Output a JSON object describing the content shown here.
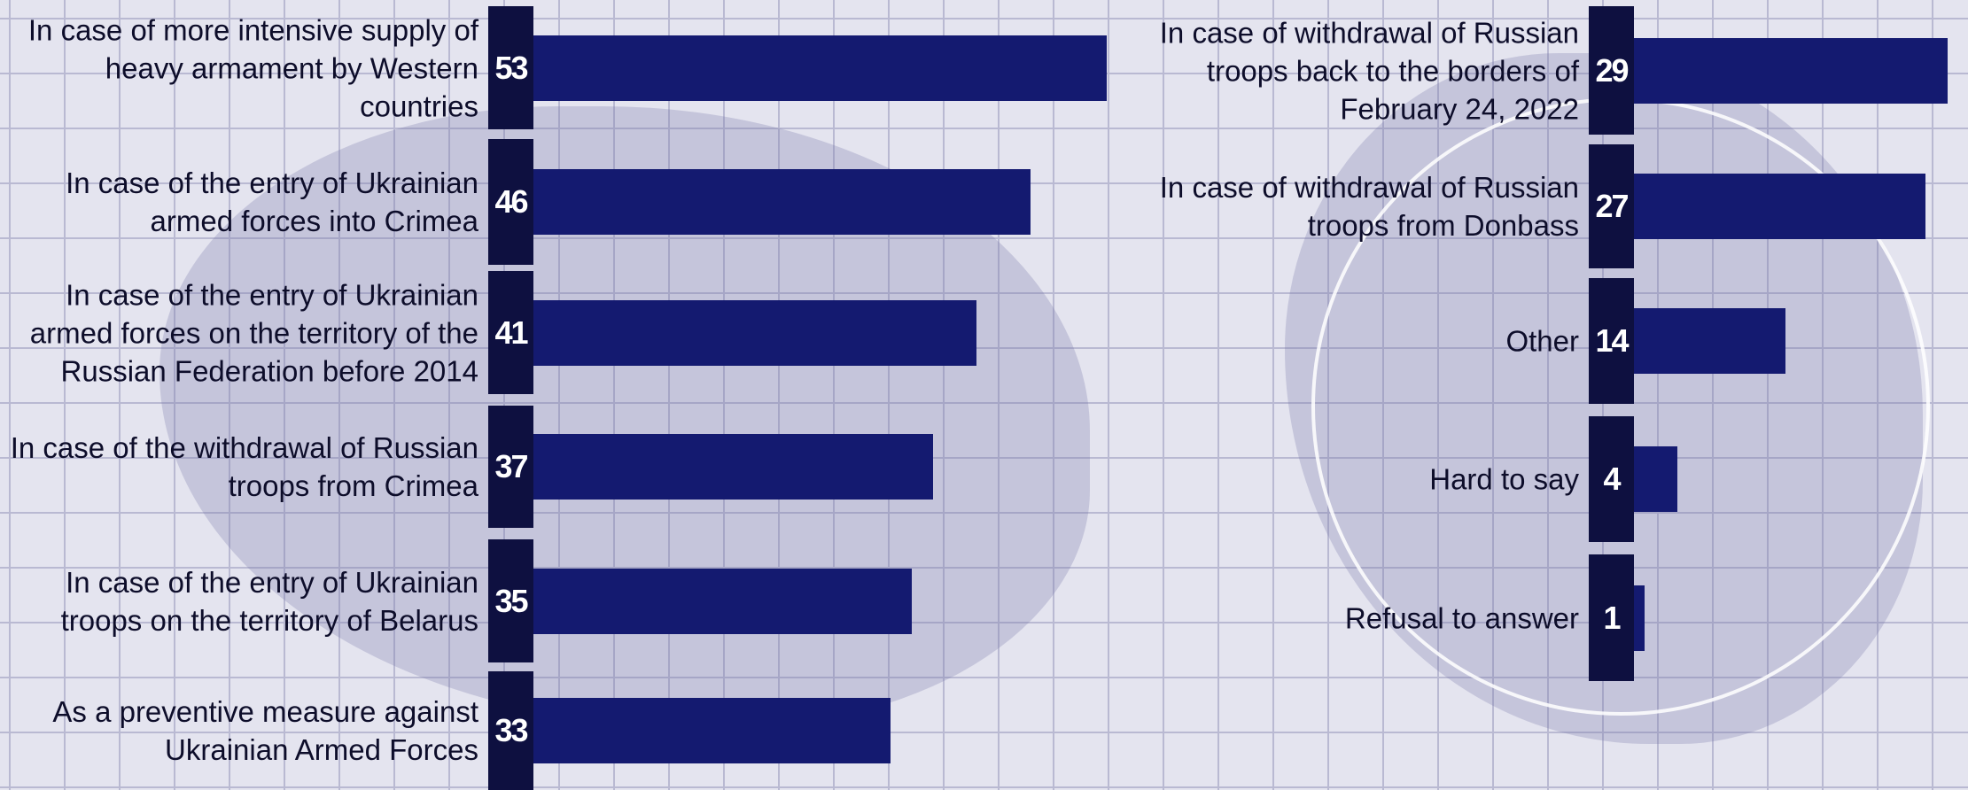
{
  "chart_data": [
    {
      "type": "bar",
      "color": "#141a70",
      "categories": [
        "In case of more intensive supply of heavy armament by Western countries",
        "In case of the entry of Ukrainian armed forces into Crimea",
        "In case of the entry of Ukrainian armed forces on the territory of the Russian Federation before 2014",
        "In case of the withdrawal of Russian troops from Crimea",
        "In case of the entry of Ukrainian troops on the territory of Belarus",
        "As a preventive measure against Ukrainian Armed Forces"
      ],
      "values": [
        53,
        46,
        41,
        37,
        35,
        33
      ]
    },
    {
      "type": "bar",
      "color": "#141a70",
      "categories": [
        "In case of withdrawal of Russian troops back to the borders of February 24, 2022",
        "In case of withdrawal of Russian troops from Donbass",
        "Other",
        "Hard to say",
        "Refusal to answer"
      ],
      "values": [
        29,
        27,
        14,
        4,
        1
      ]
    }
  ]
}
